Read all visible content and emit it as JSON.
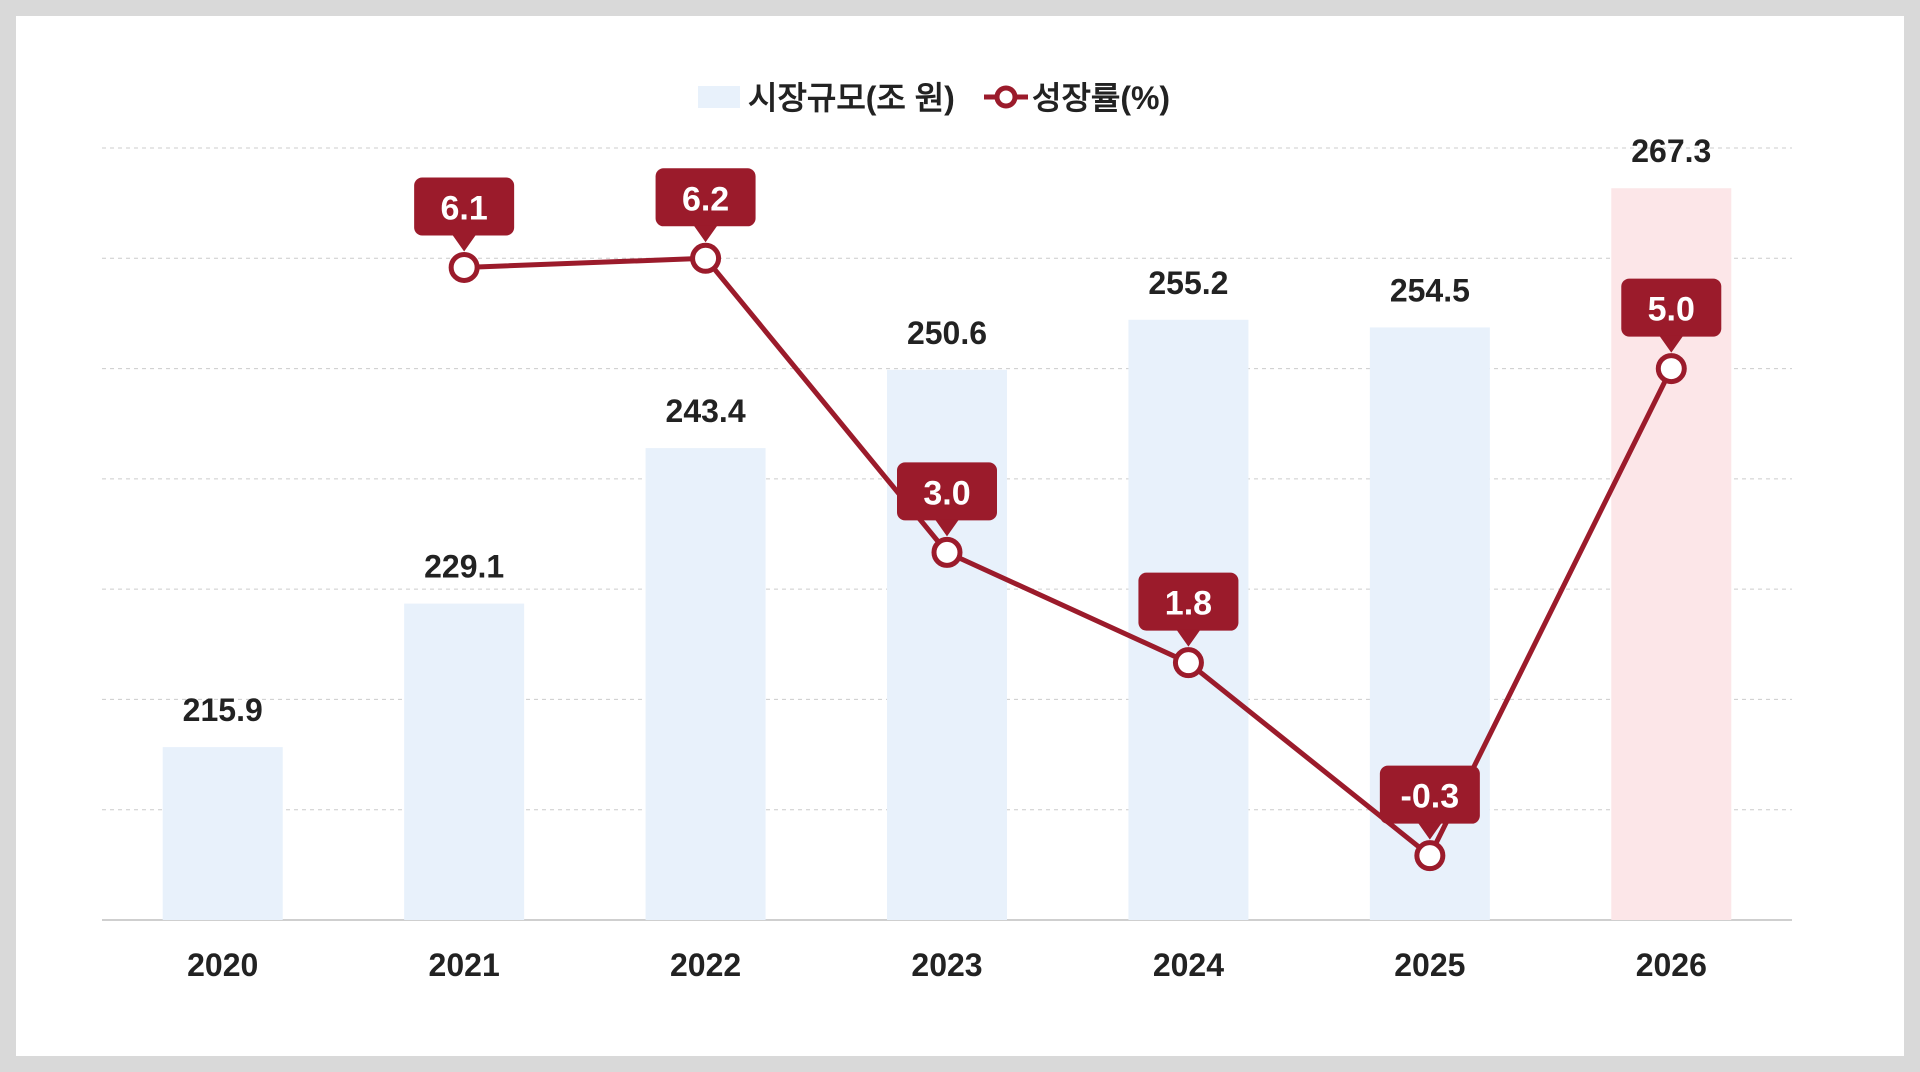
{
  "chart_data": {
    "type": "bar",
    "categories": [
      "2020",
      "2021",
      "2022",
      "2023",
      "2024",
      "2025",
      "2026"
    ],
    "series": [
      {
        "name": "시장규모(조 원)",
        "type": "bar",
        "values": [
          215.9,
          229.1,
          243.4,
          250.6,
          255.2,
          254.5,
          267.3
        ],
        "labels": [
          "215.9",
          "229.1",
          "243.4",
          "250.6",
          "255.2",
          "254.5",
          "267.3"
        ]
      },
      {
        "name": "성장률(%)",
        "type": "line",
        "values": [
          null,
          6.1,
          6.2,
          3.0,
          1.8,
          -0.3,
          5.0
        ],
        "labels": [
          "",
          "6.1",
          "6.2",
          "3.0",
          "1.8",
          "-0.3",
          "5.0"
        ]
      }
    ],
    "grid": true,
    "legend": "top-center"
  },
  "colors": {
    "bar": "#e8f1fb",
    "bar_highlight": "#fce6e8",
    "line": "#9b1b2b",
    "grid": "#cccccc",
    "text": "#222222"
  }
}
